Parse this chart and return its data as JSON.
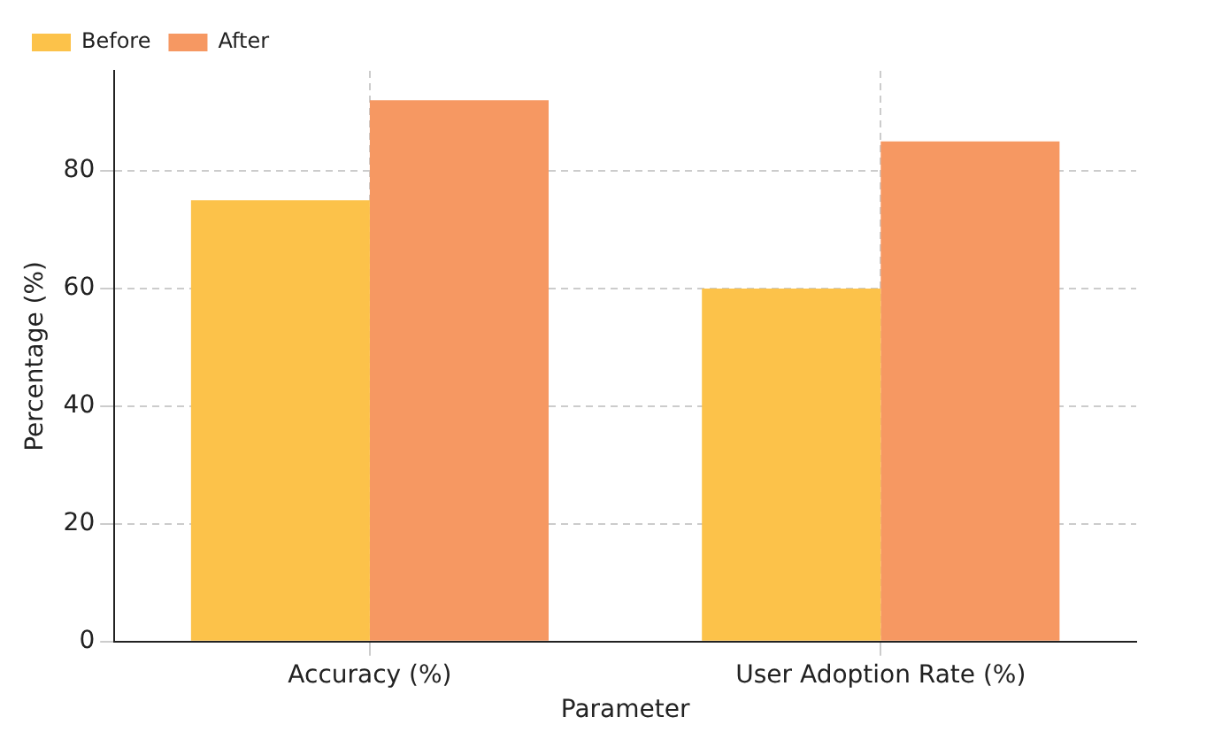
{
  "chart_data": {
    "type": "bar",
    "xlabel": "Parameter",
    "ylabel": "Percentage (%)",
    "categories": [
      "Accuracy (%)",
      "User Adoption Rate (%)"
    ],
    "series": [
      {
        "name": "Before",
        "color": "#fcc24a",
        "values": [
          75,
          60
        ]
      },
      {
        "name": "After",
        "color": "#f69862",
        "values": [
          92,
          85
        ]
      }
    ],
    "ylim": [
      0,
      97
    ],
    "yticks": [
      0,
      20,
      40,
      60,
      80
    ],
    "grid": true,
    "line_style": "dashed",
    "legend": "top left"
  }
}
